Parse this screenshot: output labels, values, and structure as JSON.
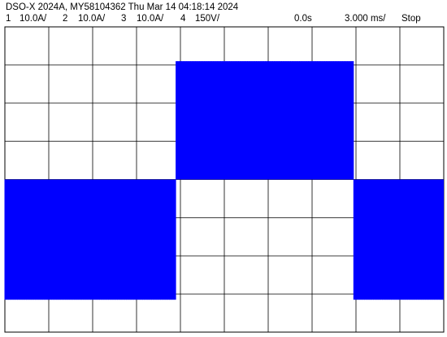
{
  "header": {
    "title": "DSO-X 2024A, MY58104362 Thu Mar 14 04:18:14 2024"
  },
  "channels": [
    {
      "num": "1",
      "scale": "10.0A/"
    },
    {
      "num": "2",
      "scale": "10.0A/"
    },
    {
      "num": "3",
      "scale": "10.0A/"
    },
    {
      "num": "4",
      "scale": "150V/"
    }
  ],
  "timebase": {
    "delay": "0.0s",
    "scale": "3.000 ms/",
    "run_state": "Stop"
  },
  "colors": {
    "trace": "#0000ff",
    "grid": "#000000",
    "background": "#ffffff"
  },
  "chart_data": {
    "type": "line",
    "grid": true,
    "divisions": {
      "x": 10,
      "y": 8
    },
    "x_unit": "div",
    "y_unit": "div",
    "xlim": [
      0,
      10
    ],
    "ylim": [
      -4,
      4
    ],
    "series": [
      {
        "segments": [
          {
            "x_start": 0.0,
            "x_end": 3.9,
            "y_low": -3.15,
            "y_high": 0.0
          },
          {
            "x_start": 3.9,
            "x_end": 7.95,
            "y_low": 0.0,
            "y_high": 3.1
          },
          {
            "x_start": 7.95,
            "x_end": 10.0,
            "y_low": -3.15,
            "y_high": 0.0
          }
        ],
        "oscillation": "square-wave bursts switching between high and low envelope"
      }
    ]
  }
}
